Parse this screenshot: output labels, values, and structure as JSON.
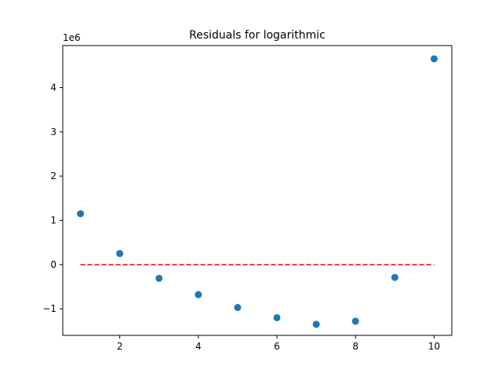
{
  "chart_data": {
    "type": "scatter",
    "title": "Residuals for logarithmic",
    "xlabel": "",
    "ylabel": "",
    "y_offset_label": "1e6",
    "xlim": [
      0.55,
      10.45
    ],
    "ylim": [
      -1.6,
      4.95
    ],
    "x_ticks": [
      2,
      4,
      6,
      8,
      10
    ],
    "x_tick_labels": [
      "2",
      "4",
      "6",
      "8",
      "10"
    ],
    "y_ticks": [
      -1,
      0,
      1,
      2,
      3,
      4
    ],
    "y_tick_labels": [
      "−1",
      "0",
      "1",
      "2",
      "3",
      "4"
    ],
    "x": [
      1,
      2,
      3,
      4,
      5,
      6,
      7,
      8,
      9,
      10
    ],
    "y": [
      1.15,
      0.25,
      -0.31,
      -0.68,
      -0.97,
      -1.2,
      -1.35,
      -1.28,
      -0.29,
      4.65
    ],
    "point_color": "#1f77b4",
    "reference_line": {
      "x_start": 1,
      "x_end": 10,
      "y": 0,
      "color": "#ff0000",
      "style": "dashed"
    },
    "grid": false,
    "legend": "none"
  }
}
